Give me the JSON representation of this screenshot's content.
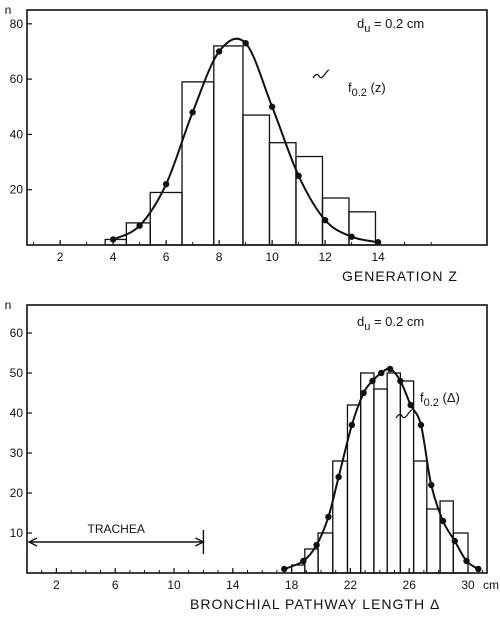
{
  "chart_data": [
    {
      "type": "bar",
      "overlay": "line",
      "ylabel": "n",
      "xlabel": "GENERATION Z",
      "annotation": "d_u = 0.2 cm",
      "curve_label": "f_0.2 (z)",
      "xlim": [
        0,
        16
      ],
      "ylim": [
        0,
        85
      ],
      "x_ticks": [
        2,
        4,
        6,
        8,
        10,
        12,
        14
      ],
      "y_ticks": [
        20,
        40,
        60,
        80
      ],
      "bins": [
        {
          "x0": 3.7,
          "x1": 4.5,
          "value": 2
        },
        {
          "x0": 4.5,
          "x1": 5.4,
          "value": 8
        },
        {
          "x0": 5.4,
          "x1": 6.6,
          "value": 19
        },
        {
          "x0": 6.6,
          "x1": 7.8,
          "value": 59
        },
        {
          "x0": 7.8,
          "x1": 8.9,
          "value": 72
        },
        {
          "x0": 8.9,
          "x1": 9.9,
          "value": 47
        },
        {
          "x0": 9.9,
          "x1": 10.9,
          "value": 37
        },
        {
          "x0": 10.9,
          "x1": 11.9,
          "value": 32
        },
        {
          "x0": 11.9,
          "x1": 12.9,
          "value": 17
        },
        {
          "x0": 12.9,
          "x1": 13.9,
          "value": 12
        }
      ],
      "curve": {
        "name": "f_0.2 (z)",
        "x": [
          4,
          5,
          6,
          7,
          8,
          9,
          10,
          11,
          12,
          13,
          14
        ],
        "y": [
          2,
          7,
          22,
          48,
          70,
          73,
          50,
          25,
          9,
          3,
          1
        ]
      }
    },
    {
      "type": "bar",
      "overlay": "line",
      "ylabel": "n",
      "xlabel": "BRONCHIAL PATHWAY LENGTH Δ",
      "x_unit": "cm",
      "annotation": "d_u = 0.2 cm",
      "curve_label": "f_0.2 (Δ)",
      "range_label": "TRACHEA",
      "range": [
        0,
        12
      ],
      "xlim": [
        0,
        32
      ],
      "ylim": [
        0,
        67
      ],
      "x_ticks": [
        2,
        6,
        10,
        14,
        18,
        22,
        26,
        30
      ],
      "y_ticks": [
        10,
        20,
        30,
        40,
        50,
        60
      ],
      "bins": [
        {
          "x0": 18.0,
          "x1": 18.9,
          "value": 2
        },
        {
          "x0": 18.9,
          "x1": 19.8,
          "value": 6
        },
        {
          "x0": 19.8,
          "x1": 20.8,
          "value": 10
        },
        {
          "x0": 20.8,
          "x1": 21.8,
          "value": 28
        },
        {
          "x0": 21.8,
          "x1": 22.7,
          "value": 42
        },
        {
          "x0": 22.7,
          "x1": 23.6,
          "value": 50
        },
        {
          "x0": 23.6,
          "x1": 24.5,
          "value": 46
        },
        {
          "x0": 24.5,
          "x1": 25.4,
          "value": 50
        },
        {
          "x0": 25.4,
          "x1": 26.3,
          "value": 48
        },
        {
          "x0": 26.3,
          "x1": 27.2,
          "value": 28
        },
        {
          "x0": 27.2,
          "x1": 28.1,
          "value": 16
        },
        {
          "x0": 28.1,
          "x1": 29.0,
          "value": 18
        },
        {
          "x0": 29.0,
          "x1": 30.0,
          "value": 10
        }
      ],
      "curve": {
        "name": "f_0.2 (Δ)",
        "x": [
          17.5,
          18.8,
          19.7,
          20.5,
          21.2,
          22.1,
          22.9,
          23.5,
          24.1,
          24.7,
          25.4,
          26.1,
          26.8,
          27.5,
          28.3,
          29.1,
          29.9,
          30.7
        ],
        "y": [
          1,
          3,
          7,
          14,
          24,
          37,
          45,
          48,
          50,
          51,
          48,
          42,
          37,
          22,
          13,
          8,
          3,
          1
        ]
      }
    }
  ]
}
